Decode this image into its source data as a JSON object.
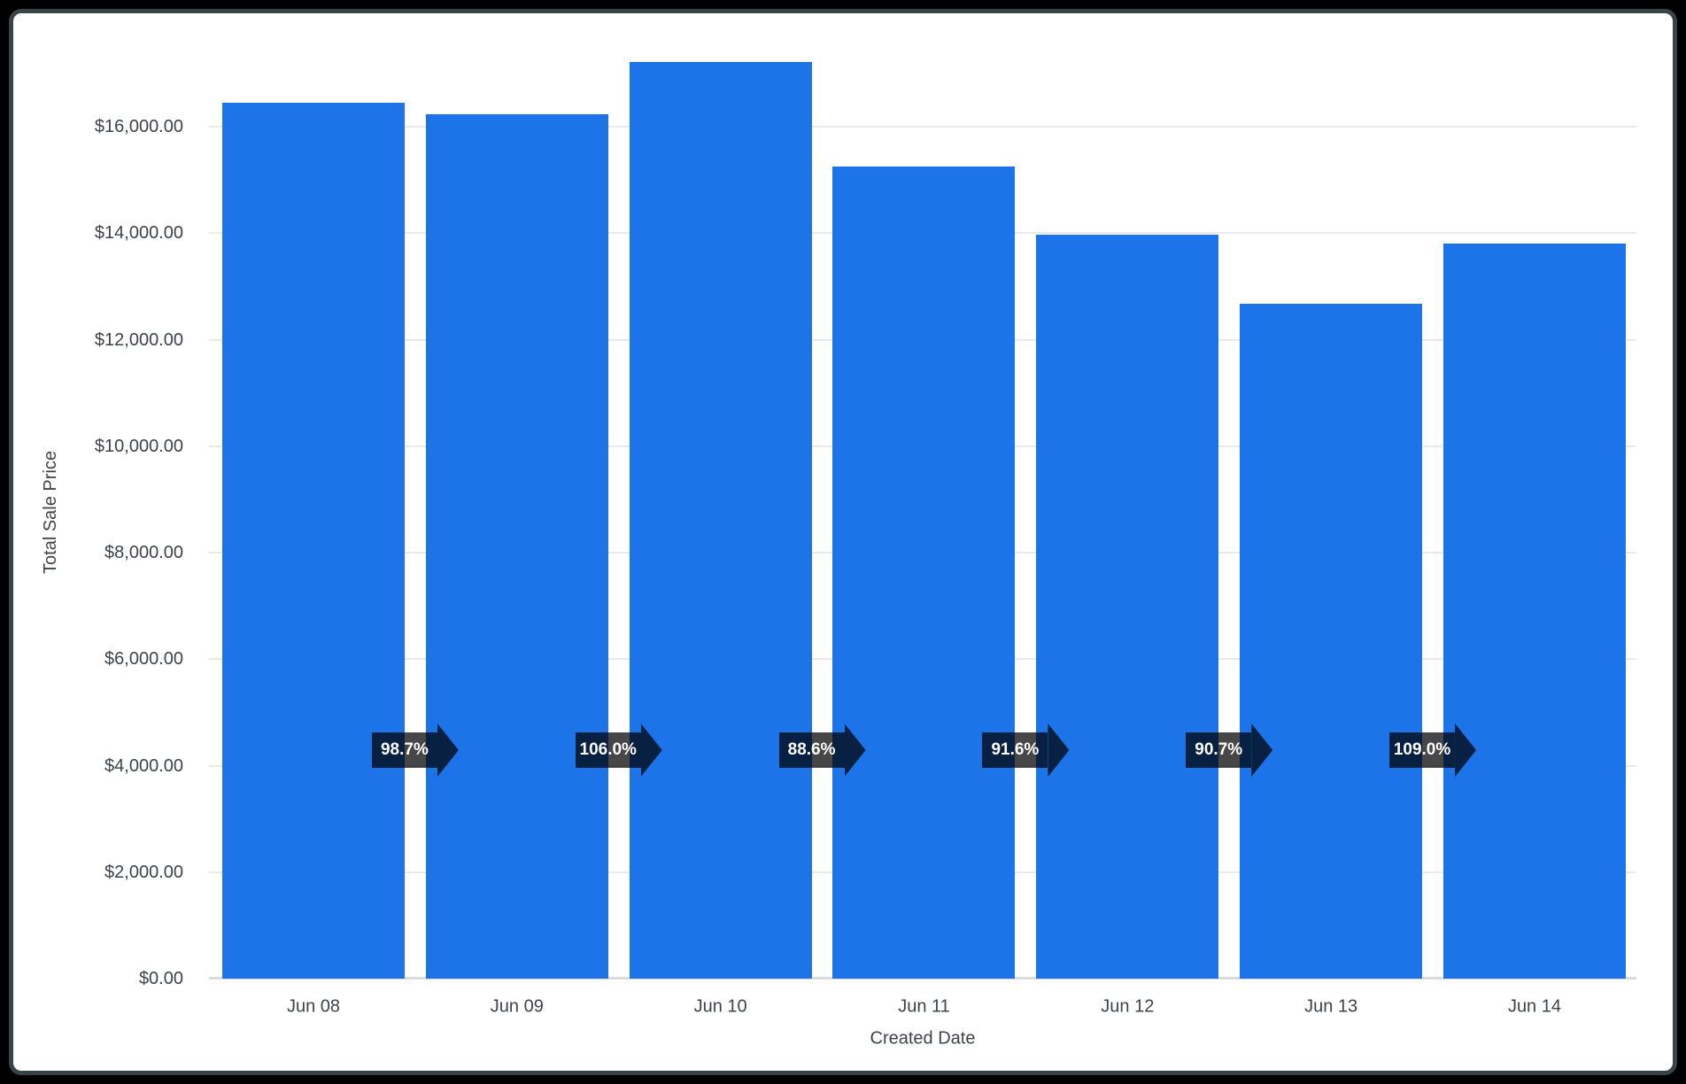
{
  "window": {
    "background": "#000000",
    "card_background": "#ffffff",
    "card_border_color": "#39434a"
  },
  "chart_data": {
    "type": "bar",
    "title": "",
    "xlabel": "Created Date",
    "ylabel": "Total Sale Price",
    "categories": [
      "Jun 08",
      "Jun 09",
      "Jun 10",
      "Jun 11",
      "Jun 12",
      "Jun 13",
      "Jun 14"
    ],
    "series": [
      {
        "name": "Total Sale Price",
        "values": [
          16450,
          16240,
          17210,
          15250,
          13970,
          12670,
          13810
        ]
      }
    ],
    "percent_change_labels": [
      "98.7%",
      "106.0%",
      "88.6%",
      "91.6%",
      "90.7%",
      "109.0%"
    ],
    "y_axis": {
      "tick_labels": [
        "$0.00",
        "$2,000.00",
        "$4,000.00",
        "$6,000.00",
        "$8,000.00",
        "$10,000.00",
        "$12,000.00",
        "$14,000.00",
        "$16,000.00"
      ],
      "tick_values": [
        0,
        2000,
        4000,
        6000,
        8000,
        10000,
        12000,
        14000,
        16000
      ],
      "range": [
        0,
        17700
      ]
    },
    "grid": "on",
    "legend": "none",
    "colors": {
      "bar": "#1d73e8",
      "arrow_badge": "rgba(0,0,0,0.72)",
      "badge_text": "#ffffff",
      "gridline": "#e8eaea",
      "baseline": "#d9dcde",
      "axis_text": "#3c434a"
    }
  }
}
